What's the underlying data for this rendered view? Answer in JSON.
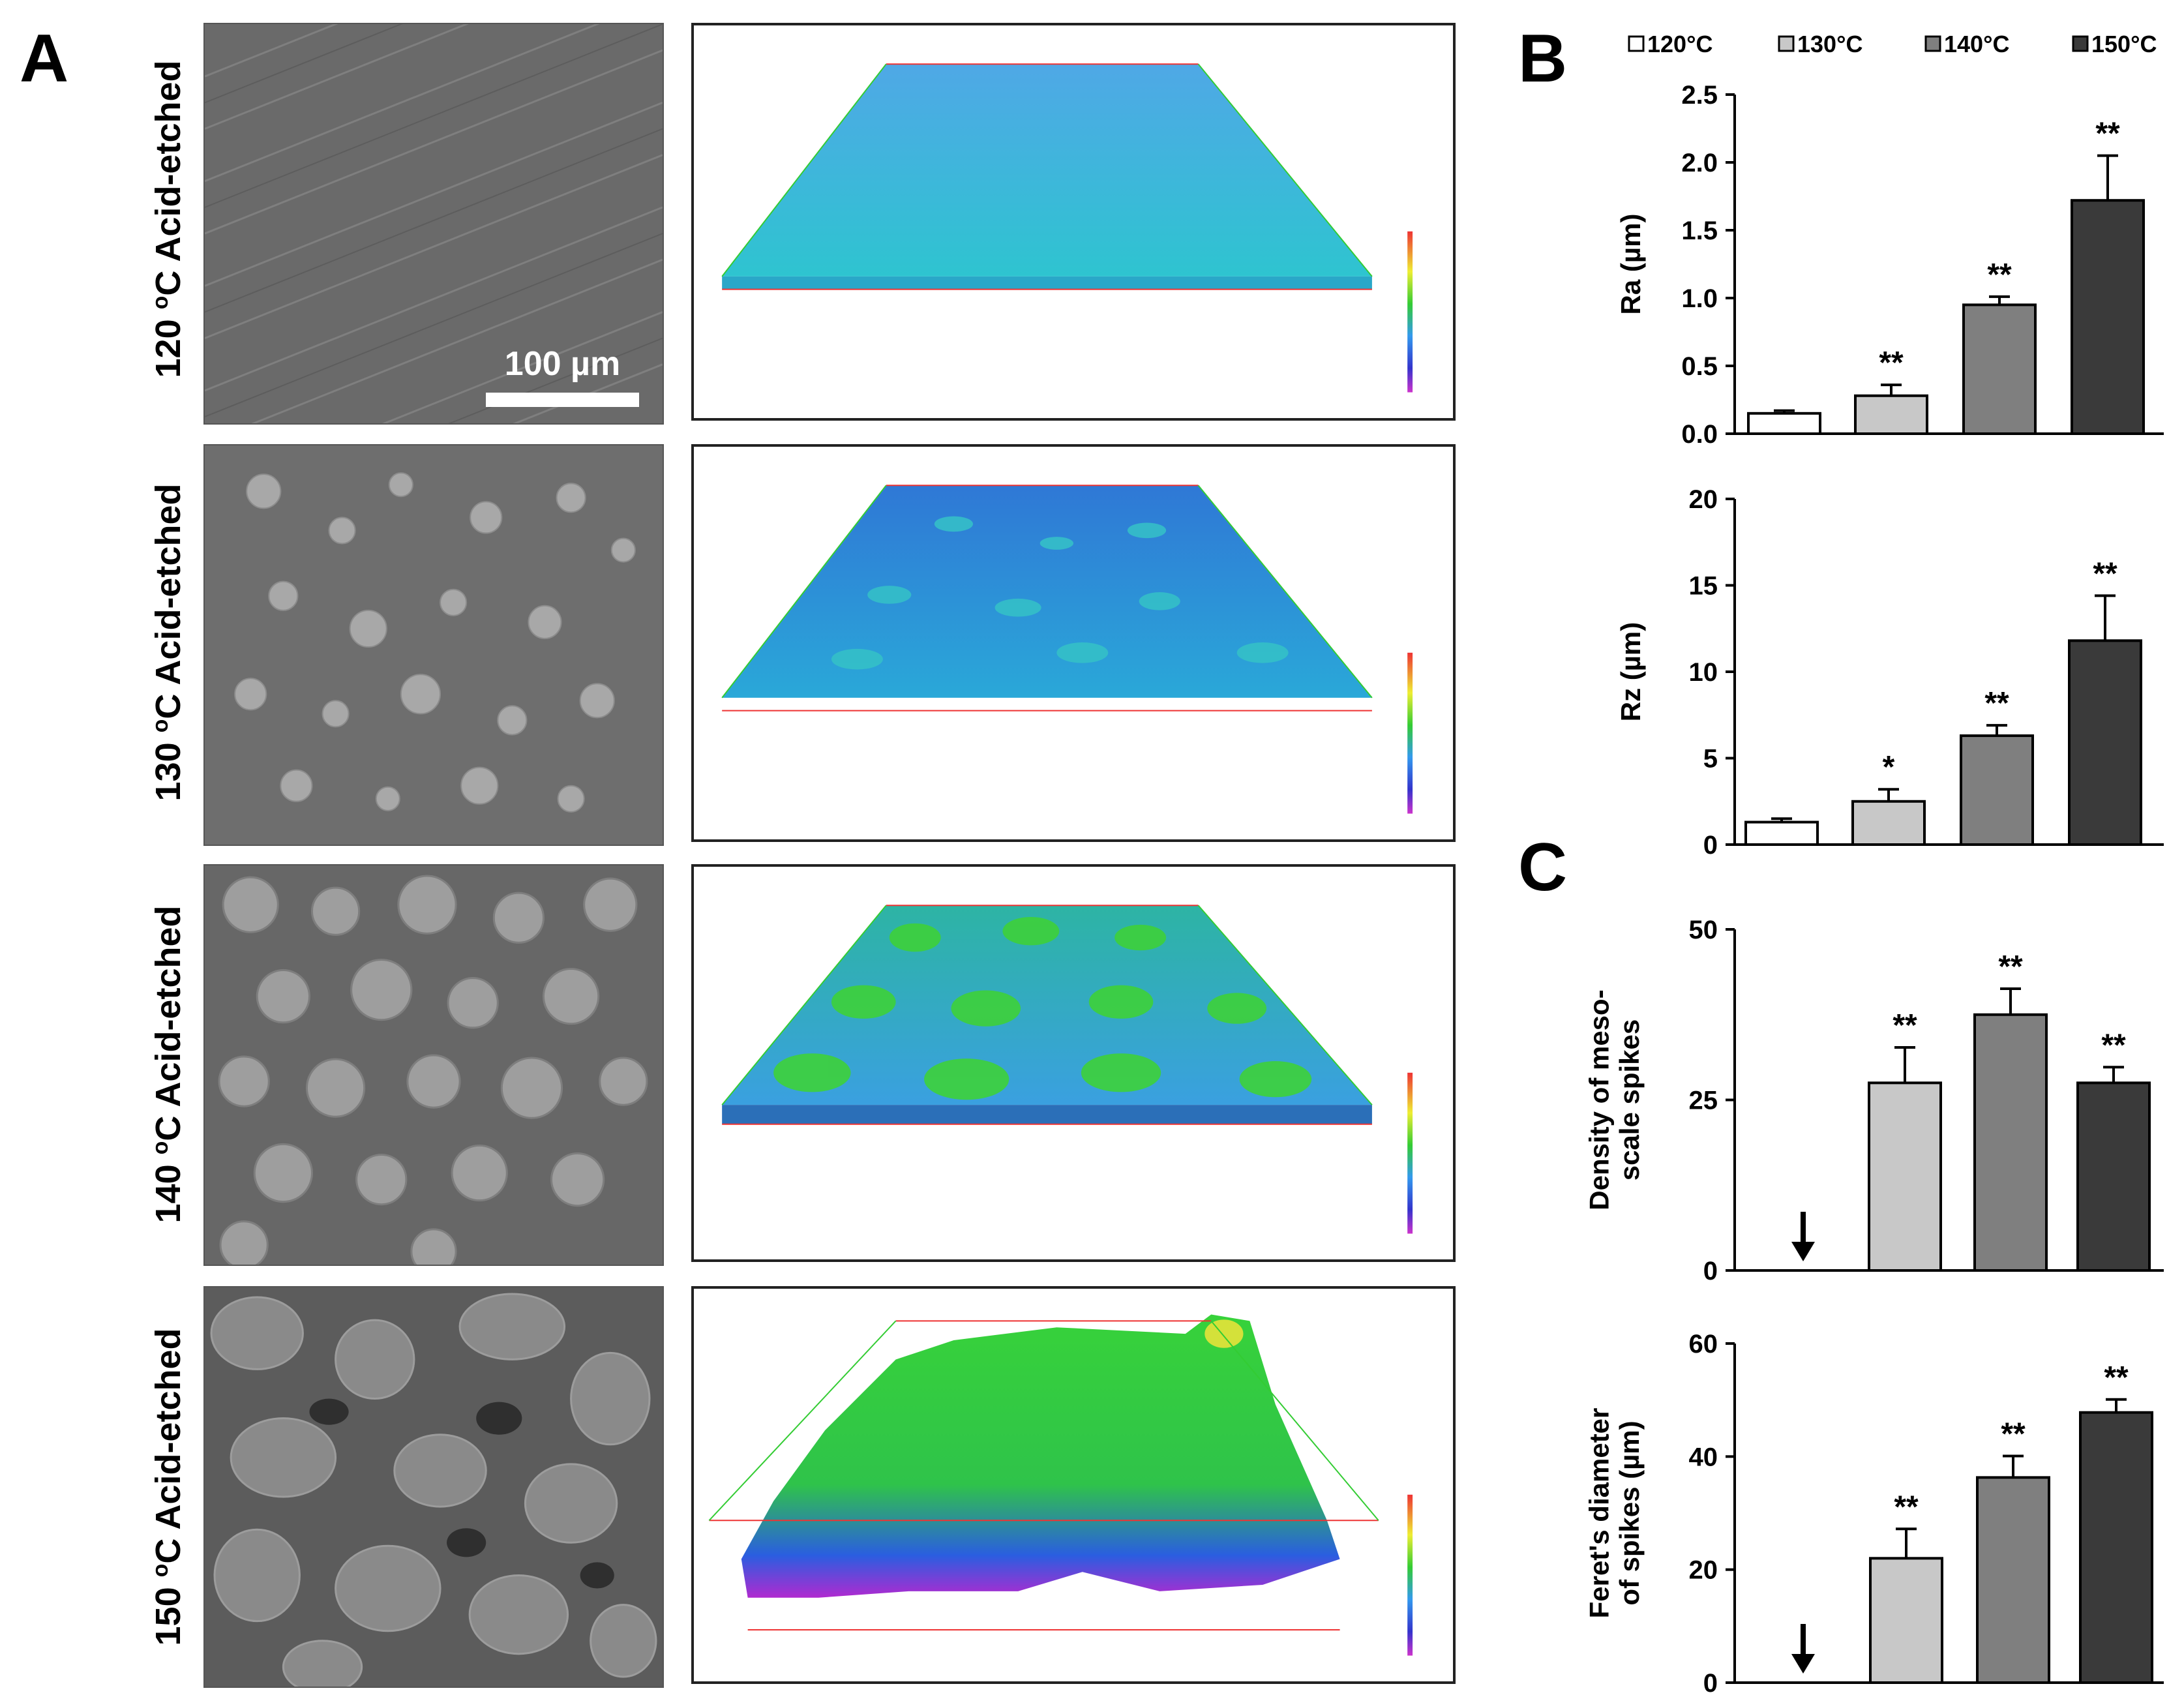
{
  "panel_a": {
    "letter": "A",
    "rows": [
      {
        "deg": "120",
        "sup": "o",
        "rest": "C Acid-etched"
      },
      {
        "deg": "130",
        "sup": "o",
        "rest": "C Acid-etched"
      },
      {
        "deg": "140",
        "sup": "o",
        "rest": "C Acid-etched"
      },
      {
        "deg": "150",
        "sup": "o",
        "rest": "C Acid-etched"
      }
    ],
    "scale_bar": "100 µm"
  },
  "panel_b": {
    "letter": "B"
  },
  "panel_c": {
    "letter": "C"
  },
  "legend": {
    "entries": [
      {
        "label": "120°C",
        "color": "#ffffff"
      },
      {
        "label": "130°C",
        "color": "#c8c8c8"
      },
      {
        "label": "140°C",
        "color": "#7f7f7f"
      },
      {
        "label": "150°C",
        "color": "#3a3a3a"
      }
    ]
  },
  "chart_data": [
    {
      "type": "bar",
      "panel": "B",
      "categories": [
        "120°C",
        "130°C",
        "140°C",
        "150°C"
      ],
      "values": [
        0.15,
        0.28,
        0.95,
        1.72
      ],
      "errors": [
        0.02,
        0.08,
        0.06,
        0.33
      ],
      "annotations": [
        "",
        "**",
        "**",
        "**"
      ],
      "ylabel": "Ra (µm)",
      "ylim": [
        0,
        2.5
      ],
      "yticks": [
        "0.0",
        "0.5",
        "1.0",
        "1.5",
        "2.0",
        "2.5"
      ],
      "colors": [
        "#ffffff",
        "#c8c8c8",
        "#7f7f7f",
        "#3a3a3a"
      ]
    },
    {
      "type": "bar",
      "panel": "B",
      "categories": [
        "120°C",
        "130°C",
        "140°C",
        "150°C"
      ],
      "values": [
        1.3,
        2.5,
        6.3,
        11.8
      ],
      "errors": [
        0.2,
        0.7,
        0.6,
        2.6
      ],
      "annotations": [
        "",
        "*",
        "**",
        "**"
      ],
      "ylabel": "Rz (µm)",
      "ylim": [
        0,
        20
      ],
      "yticks": [
        "0",
        "5",
        "10",
        "15",
        "20"
      ],
      "colors": [
        "#ffffff",
        "#c8c8c8",
        "#7f7f7f",
        "#3a3a3a"
      ]
    },
    {
      "type": "bar",
      "panel": "C",
      "categories": [
        "120°C",
        "130°C",
        "140°C",
        "150°C"
      ],
      "values": [
        0,
        27.5,
        37.5,
        27.5
      ],
      "errors": [
        0,
        5.2,
        3.8,
        2.3
      ],
      "annotations": [
        "↓",
        "**",
        "**",
        "**"
      ],
      "ylabel": [
        "Density of meso-",
        "scale spikes"
      ],
      "ylim": [
        0,
        50
      ],
      "yticks": [
        "0",
        "25",
        "50"
      ],
      "colors": [
        "#ffffff",
        "#c8c8c8",
        "#7f7f7f",
        "#3a3a3a"
      ]
    },
    {
      "type": "bar",
      "panel": "C",
      "categories": [
        "120°C",
        "130°C",
        "140°C",
        "150°C"
      ],
      "values": [
        0,
        22,
        36.3,
        47.8
      ],
      "errors": [
        0,
        5.2,
        3.8,
        2.3
      ],
      "annotations": [
        "↓",
        "**",
        "**",
        "**"
      ],
      "ylabel": [
        "Feret's diameter",
        "of spikes (µm)"
      ],
      "ylim": [
        0,
        60
      ],
      "yticks": [
        "0",
        "20",
        "40",
        "60"
      ],
      "colors": [
        "#ffffff",
        "#c8c8c8",
        "#7f7f7f",
        "#3a3a3a"
      ]
    }
  ]
}
